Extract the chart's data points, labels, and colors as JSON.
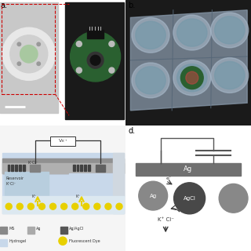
{
  "fig_width": 3.2,
  "fig_height": 3.2,
  "dpi": 100,
  "bg_color": "#ffffff",
  "panel_c": {
    "bg_outer": "#f0f0f0",
    "device_bg": "#c8d8ea",
    "gray_layer": "#909090",
    "gray_layer2": "#b0b0b0",
    "reservoir_left_bg": "#b8cede",
    "reservoir_right_bg": "#c8d8ea",
    "hydrogel_bg": "#dce8f0",
    "electrode_dark": "#404040",
    "electrode_ag": "#808080",
    "electrode_agcl": "#606060",
    "wire_color": "#333333",
    "volt_box_bg": "#ffffff",
    "arrow_yellow": "#e8d000",
    "dot_yellow": "#e8d000",
    "text_color": "#333333"
  },
  "panel_d": {
    "bg": "#ffffff",
    "wire_color": "#555555",
    "ag_bar_color": "#707070",
    "ag_circle_color": "#888888",
    "agcl_circle_color": "#484848",
    "ag2_circle_color": "#888888",
    "text_color": "#333333",
    "text_white": "#ffffff"
  }
}
